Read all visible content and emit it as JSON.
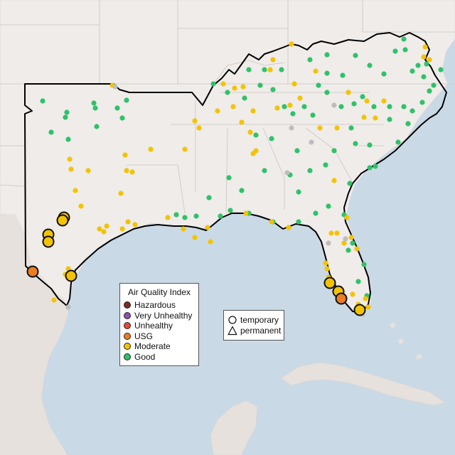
{
  "legend": {
    "title": "Air Quality Index",
    "categories": [
      {
        "label": "Hazardous",
        "color": "#7e2a1e"
      },
      {
        "label": "Very Unhealthy",
        "color": "#8e4fb3"
      },
      {
        "label": "Unhealthy",
        "color": "#e54b2f"
      },
      {
        "label": "USG",
        "color": "#ec7d20"
      },
      {
        "label": "Moderate",
        "color": "#f3c300"
      },
      {
        "label": "Good",
        "color": "#2fc268"
      }
    ]
  },
  "type_legend": {
    "temporary": "temporary",
    "permanent": "permanent"
  },
  "colors": {
    "water": "#cad9e6",
    "land": "#efecea",
    "land_outer": "#e6e1dd",
    "border": "#c9c5c2",
    "good": "#2fc268",
    "moderate": "#f3c300",
    "usg": "#ec7d20",
    "no_data": "#bdbdbd"
  }
}
